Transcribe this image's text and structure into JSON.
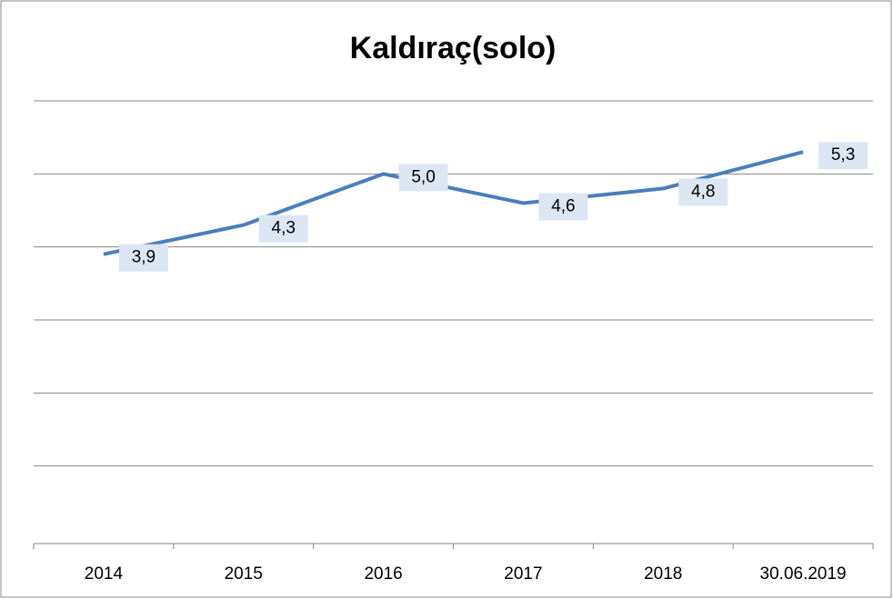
{
  "chart_data": {
    "type": "line",
    "title": "Kaldıraç(solo)",
    "categories": [
      "2014",
      "2015",
      "2016",
      "2017",
      "2018",
      "30.06.2019"
    ],
    "series": [
      {
        "name": "Kaldıraç(solo)",
        "color": "#4a7ebb",
        "values": [
          3.9,
          4.3,
          5.0,
          4.6,
          4.8,
          5.3
        ],
        "value_labels": [
          "3,9",
          "4,3",
          "5,0",
          "4,6",
          "4,8",
          "5,3"
        ]
      }
    ],
    "ylim": [
      0,
      6
    ],
    "yticks": [
      0,
      1,
      2,
      3,
      4,
      5,
      6
    ],
    "grid": true
  }
}
